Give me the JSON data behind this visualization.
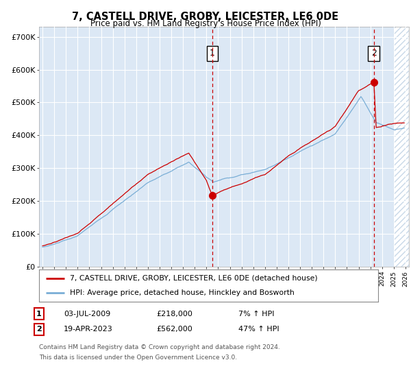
{
  "title": "7, CASTELL DRIVE, GROBY, LEICESTER, LE6 0DE",
  "subtitle": "Price paid vs. HM Land Registry's House Price Index (HPI)",
  "ylabel_ticks": [
    "£0",
    "£100K",
    "£200K",
    "£300K",
    "£400K",
    "£500K",
    "£600K",
    "£700K"
  ],
  "ytick_values": [
    0,
    100000,
    200000,
    300000,
    400000,
    500000,
    600000,
    700000
  ],
  "ylim": [
    0,
    730000
  ],
  "xlim_start": 1994.7,
  "xlim_end": 2026.3,
  "sale1_date": 2009.5,
  "sale1_price": 218000,
  "sale1_label": "1",
  "sale1_text": "03-JUL-2009",
  "sale1_hpi_pct": "7% ↑ HPI",
  "sale2_date": 2023.3,
  "sale2_price": 562000,
  "sale2_label": "2",
  "sale2_text": "19-APR-2023",
  "sale2_hpi_pct": "47% ↑ HPI",
  "legend_line1": "7, CASTELL DRIVE, GROBY, LEICESTER, LE6 0DE (detached house)",
  "legend_line2": "HPI: Average price, detached house, Hinckley and Bosworth",
  "footer1": "Contains HM Land Registry data © Crown copyright and database right 2024.",
  "footer2": "This data is licensed under the Open Government Licence v3.0.",
  "line_red": "#cc0000",
  "line_blue": "#7aaed6",
  "bg_plot": "#dce8f5",
  "bg_fig": "#ffffff",
  "grid_color": "#ffffff",
  "annotation_box_color": "#cc0000",
  "hatch_color": "#c8d8e8"
}
